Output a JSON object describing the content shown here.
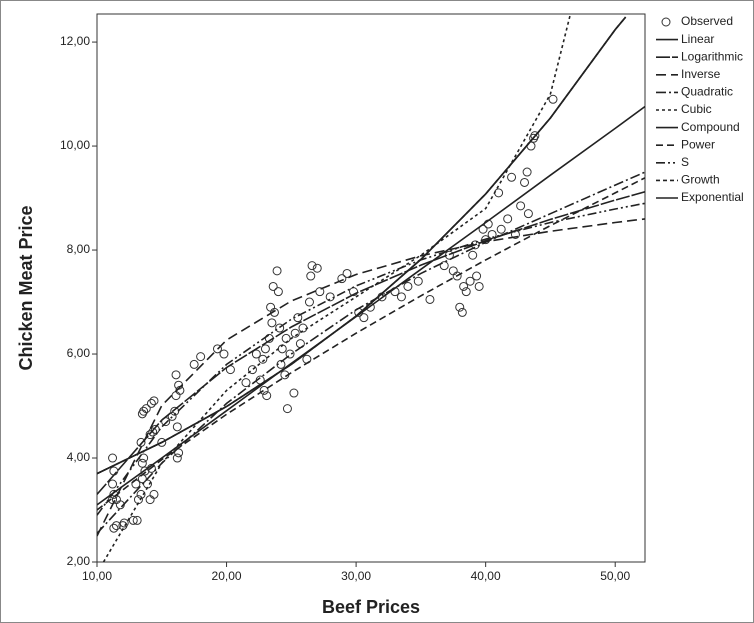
{
  "chart_data": {
    "type": "scatter",
    "x_label": "Beef Prices",
    "y_label": "Chicken Meat Price",
    "xlim": [
      10,
      52.3
    ],
    "ylim": [
      2,
      12.54
    ],
    "xticks": [
      {
        "value": 10,
        "label": "10,00"
      },
      {
        "value": 20,
        "label": "20,00"
      },
      {
        "value": 30,
        "label": "30,00"
      },
      {
        "value": 40,
        "label": "40,00"
      },
      {
        "value": 50,
        "label": "50,00"
      }
    ],
    "yticks": [
      {
        "value": 2,
        "label": "2,00"
      },
      {
        "value": 4,
        "label": "4,00"
      },
      {
        "value": 6,
        "label": "6,00"
      },
      {
        "value": 8,
        "label": "8,00"
      },
      {
        "value": 10,
        "label": "10,00"
      },
      {
        "value": 12,
        "label": "12,00"
      }
    ],
    "series": [
      {
        "name": "Observed",
        "type": "scatter",
        "color": "#333333",
        "x": [
          11.2,
          11.3,
          11.2,
          11.3,
          11.5,
          11.2,
          11.5,
          11.3,
          12,
          12.1,
          11.8,
          12.8,
          13.1,
          13,
          13.2,
          13.4,
          13.5,
          13.7,
          13.5,
          13.6,
          13.4,
          13.5,
          13.6,
          13.8,
          14.2,
          14.4,
          14.1,
          14.3,
          14.5,
          14.2,
          14.4,
          14.1,
          13.9,
          15,
          15.3,
          15.8,
          16,
          16.2,
          16.3,
          16.2,
          16.1,
          16.3,
          16.1,
          16.4,
          17.5,
          18,
          19.3,
          19.8,
          20.3,
          21.5,
          22,
          22.3,
          22.6,
          22.9,
          23.1,
          22.8,
          23,
          23.3,
          23.5,
          23.4,
          23.6,
          23.9,
          24,
          23.7,
          24.1,
          24.3,
          24.2,
          24.5,
          24.7,
          25.2,
          24.6,
          24.9,
          25.3,
          25.5,
          25.7,
          25.9,
          26.2,
          26.4,
          26.5,
          26.6,
          27,
          27.2,
          28,
          28.9,
          29.3,
          29.8,
          30.2,
          30.6,
          31.1,
          32,
          33,
          33.5,
          34,
          34.8,
          35.7,
          36.8,
          37.2,
          37.5,
          37.8,
          38,
          38.2,
          38.3,
          38.5,
          38.8,
          39,
          39.2,
          39.3,
          39.5,
          39.8,
          40,
          40.2,
          40.5,
          41,
          41.2,
          41.7,
          42,
          42.3,
          42.7,
          43,
          43.2,
          43.3,
          43.5,
          43.7,
          43.8,
          45.2
        ],
        "values": [
          4.0,
          3.75,
          3.5,
          3.3,
          3.2,
          3.2,
          2.7,
          2.65,
          2.7,
          2.75,
          3.1,
          2.8,
          2.8,
          3.5,
          3.2,
          3.3,
          3.6,
          3.75,
          3.9,
          4.0,
          4.3,
          4.85,
          4.9,
          4.95,
          5.05,
          5.1,
          4.45,
          4.5,
          4.55,
          3.8,
          3.3,
          3.2,
          3.5,
          4.3,
          4.7,
          4.8,
          4.9,
          4.6,
          4.1,
          4.0,
          5.2,
          5.4,
          5.6,
          5.3,
          5.8,
          5.95,
          6.1,
          6.0,
          5.7,
          5.45,
          5.7,
          6.0,
          5.5,
          5.3,
          5.2,
          5.9,
          6.1,
          6.3,
          6.6,
          6.9,
          7.3,
          7.6,
          7.2,
          6.8,
          6.5,
          6.1,
          5.8,
          5.6,
          4.95,
          5.25,
          6.3,
          6.0,
          6.4,
          6.7,
          6.2,
          6.5,
          5.9,
          7.0,
          7.5,
          7.7,
          7.65,
          7.2,
          7.1,
          7.45,
          7.55,
          7.2,
          6.8,
          6.7,
          6.9,
          7.1,
          7.2,
          7.1,
          7.3,
          7.4,
          7.05,
          7.7,
          7.9,
          7.6,
          7.5,
          6.9,
          6.8,
          7.3,
          7.2,
          7.4,
          7.9,
          8.1,
          7.5,
          7.3,
          8.4,
          8.2,
          8.5,
          8.3,
          9.1,
          8.4,
          8.6,
          9.4,
          8.3,
          8.85,
          9.3,
          9.5,
          8.7,
          10.0,
          10.15,
          10.2,
          10.9
        ]
      },
      {
        "name": "Linear",
        "type": "line",
        "color": "#222222",
        "dash": "none",
        "x": [
          10,
          15,
          20,
          25,
          30,
          35,
          40,
          45,
          50,
          52.3
        ],
        "values": [
          3.1,
          4.0,
          4.91,
          5.82,
          6.72,
          7.63,
          8.53,
          9.44,
          10.34,
          10.76
        ]
      },
      {
        "name": "Logarithmic",
        "type": "line",
        "color": "#222222",
        "dash": "14,2",
        "x": [
          10,
          15,
          20,
          25,
          30,
          35,
          40,
          45,
          50,
          52.3
        ],
        "values": [
          3.3,
          4.73,
          5.74,
          6.52,
          7.17,
          7.71,
          8.18,
          8.59,
          8.96,
          9.12
        ]
      },
      {
        "name": "Inverse",
        "type": "line",
        "color": "#222222",
        "dash": "10,5",
        "x": [
          10,
          15,
          20,
          25,
          30,
          35,
          40,
          45,
          50,
          52.3
        ],
        "values": [
          2.5,
          5.01,
          6.27,
          7.02,
          7.53,
          7.89,
          8.16,
          8.36,
          8.53,
          8.6
        ]
      },
      {
        "name": "Quadratic",
        "type": "line",
        "color": "#222222",
        "dash": "10,3,2,3",
        "x": [
          10,
          15,
          20,
          25,
          30,
          35,
          40,
          45,
          50,
          52.3
        ],
        "values": [
          2.55,
          3.9,
          5.05,
          6.0,
          6.85,
          7.55,
          8.15,
          8.7,
          9.25,
          9.5
        ]
      },
      {
        "name": "Cubic",
        "type": "line",
        "color": "#222222",
        "dash": "3,3",
        "x": [
          10.5,
          15,
          20,
          25,
          30,
          35,
          40,
          45,
          46.5
        ],
        "values": [
          2.0,
          3.9,
          5.3,
          6.3,
          7.1,
          7.9,
          8.8,
          11.0,
          12.5
        ]
      },
      {
        "name": "Compound",
        "type": "line",
        "color": "#222222",
        "dash": "none",
        "x": [
          10,
          15,
          20,
          25,
          30,
          35,
          40,
          45,
          50,
          50.8
        ],
        "values": [
          3.7,
          4.3,
          4.99,
          5.8,
          6.73,
          7.82,
          9.08,
          10.54,
          12.24,
          12.48
        ]
      },
      {
        "name": "Power",
        "type": "line",
        "color": "#222222",
        "dash": "7,4",
        "x": [
          10,
          15,
          20,
          25,
          30,
          35,
          40,
          45,
          50,
          52.3
        ],
        "values": [
          3.0,
          3.97,
          4.84,
          5.64,
          6.4,
          7.12,
          7.81,
          8.47,
          9.1,
          9.39
        ]
      },
      {
        "name": "S",
        "type": "line",
        "color": "#222222",
        "dash": "9,3,2,3,2,3",
        "x": [
          10,
          15,
          20,
          25,
          30,
          35,
          40,
          45,
          50,
          52.3
        ],
        "values": [
          2.9,
          4.6,
          5.8,
          6.67,
          7.31,
          7.81,
          8.21,
          8.53,
          8.79,
          8.9
        ]
      },
      {
        "name": "Growth",
        "type": "line",
        "color": "#222222",
        "dash": "4,3",
        "x": [
          10,
          15,
          20,
          25,
          30,
          35,
          40,
          45,
          50,
          50.8
        ],
        "values": [
          3.7,
          4.3,
          4.99,
          5.8,
          6.73,
          7.82,
          9.08,
          10.54,
          12.24,
          12.48
        ]
      },
      {
        "name": "Exponential",
        "type": "line",
        "color": "#222222",
        "dash": "none",
        "x": [
          10,
          15,
          20,
          25,
          30,
          35,
          40,
          45,
          50,
          50.8
        ],
        "values": [
          3.7,
          4.3,
          4.99,
          5.8,
          6.73,
          7.82,
          9.08,
          10.54,
          12.24,
          12.48
        ]
      }
    ]
  }
}
